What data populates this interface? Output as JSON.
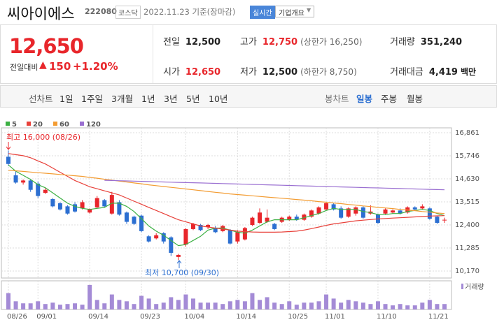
{
  "header": {
    "name": "씨아이에스",
    "code": "222080",
    "market": "코스닥",
    "date": "2022.11.23 기준(장마감)",
    "realtime": "실시간",
    "overview": "기업개요"
  },
  "quote": {
    "price": "12,650",
    "change_label": "전일대비",
    "change": "150",
    "change_pct": "+1.20%",
    "items": [
      {
        "label": "전일",
        "value": "12,500"
      },
      {
        "label": "고가",
        "value": "12,750",
        "note": "(상한가 16,250)"
      },
      {
        "label": "거래량",
        "value": "351,240"
      },
      {
        "label": "시가",
        "value": "12,650"
      },
      {
        "label": "저가",
        "value": "12,500",
        "note": "(하한가 8,750)"
      },
      {
        "label": "거래대금",
        "value": "4,419",
        "unit": "백만"
      }
    ]
  },
  "tabs": {
    "line": "선차트",
    "periods": [
      "1일",
      "1주일",
      "3개월",
      "1년",
      "3년",
      "5년",
      "10년"
    ],
    "candle": "봉차트",
    "candle_periods": [
      "일봉",
      "주봉",
      "월봉"
    ]
  },
  "chart_data": {
    "type": "candlestick",
    "categories": [
      "08/26",
      null,
      null,
      null,
      "09/01",
      null,
      null,
      null,
      null,
      null,
      null,
      "09/14",
      null,
      null,
      null,
      null,
      null,
      null,
      "09/23",
      null,
      null,
      null,
      null,
      null,
      "10/04",
      null,
      null,
      null,
      null,
      null,
      null,
      "10/14",
      null,
      null,
      null,
      null,
      null,
      null,
      "10/25",
      null,
      null,
      null,
      null,
      "11/01",
      null,
      null,
      null,
      null,
      null,
      null,
      "11/10",
      null,
      null,
      null,
      null,
      null,
      null,
      "11/21",
      null,
      null
    ],
    "open": [
      15700,
      14800,
      14450,
      14550,
      14400,
      13950,
      13650,
      13450,
      13300,
      13400,
      13200,
      13000,
      13250,
      13600,
      12950,
      13500,
      13000,
      12800,
      12850,
      11850,
      11750,
      12000,
      11800,
      10850,
      11450,
      12200,
      12400,
      12300,
      12250,
      12100,
      12150,
      11600,
      11700,
      12400,
      12500,
      12550,
      12450,
      12550,
      12650,
      12800,
      12650,
      12800,
      12950,
      13150,
      13400,
      13200,
      12800,
      12950,
      13250,
      12950,
      12900,
      12950,
      13000,
      13100,
      13000,
      13250,
      13200,
      13200,
      12800,
      12650
    ],
    "high": [
      16000,
      15000,
      14600,
      14600,
      14500,
      14200,
      13700,
      13500,
      13350,
      13500,
      13600,
      13200,
      13800,
      13650,
      14000,
      13600,
      13050,
      12850,
      12900,
      11900,
      12000,
      12050,
      11850,
      11000,
      12250,
      12500,
      12450,
      12450,
      12350,
      12400,
      12200,
      12150,
      12300,
      12800,
      13200,
      13150,
      12500,
      12800,
      12850,
      12900,
      12950,
      13150,
      13300,
      13500,
      13450,
      13300,
      13250,
      13300,
      13300,
      13350,
      12950,
      13200,
      13150,
      13200,
      13300,
      13300,
      13400,
      13250,
      12850,
      12750
    ],
    "low": [
      15250,
      14400,
      14350,
      14000,
      13700,
      13900,
      13250,
      13100,
      12900,
      13000,
      13150,
      12950,
      13200,
      13250,
      12900,
      12850,
      12450,
      12400,
      12050,
      11550,
      11700,
      11500,
      10900,
      10700,
      11350,
      12150,
      12100,
      12200,
      12000,
      12050,
      11450,
      11500,
      11650,
      12350,
      12450,
      12500,
      12150,
      12500,
      12600,
      12600,
      12600,
      12750,
      12900,
      13100,
      13100,
      12700,
      12750,
      12850,
      12700,
      12900,
      12450,
      12900,
      12950,
      12900,
      12950,
      13100,
      13150,
      12650,
      12450,
      12500
    ],
    "close": [
      15350,
      14450,
      14550,
      14100,
      13800,
      14100,
      13300,
      13150,
      12950,
      13050,
      13500,
      13150,
      13700,
      13300,
      13850,
      12900,
      12550,
      12450,
      12100,
      11600,
      11900,
      11600,
      11050,
      10950,
      12200,
      12450,
      12150,
      12400,
      12050,
      12350,
      11500,
      12050,
      12250,
      12750,
      13000,
      12750,
      12200,
      12750,
      12800,
      12650,
      12900,
      13100,
      13250,
      13450,
      13150,
      12750,
      13200,
      13250,
      12750,
      13050,
      12500,
      13150,
      13100,
      12950,
      13250,
      13150,
      13300,
      12700,
      12500,
      12650
    ],
    "up_color": "#e8262b",
    "down_color": "#2c6fd1",
    "series": [
      {
        "name": "5",
        "color": "#3cb043",
        "values": [
          15300,
          15000,
          14800,
          14600,
          14350,
          14200,
          13950,
          13700,
          13450,
          13300,
          13200,
          13150,
          13200,
          13250,
          13450,
          13450,
          13300,
          13050,
          12700,
          12350,
          12100,
          11900,
          11650,
          11400,
          11450,
          11650,
          11850,
          12150,
          12250,
          12250,
          12150,
          12050,
          12000,
          12150,
          12350,
          12550,
          12650,
          12650,
          12650,
          12650,
          12750,
          12850,
          12950,
          13100,
          13200,
          13150,
          13150,
          13150,
          13050,
          13000,
          12900,
          12900,
          12950,
          12950,
          13050,
          13100,
          13150,
          13100,
          12950,
          12850
        ]
      },
      {
        "name": "20",
        "color": "#e8413a",
        "values": [
          15850,
          15800,
          15750,
          15650,
          15500,
          15350,
          15150,
          14950,
          14750,
          14550,
          14400,
          14250,
          14150,
          14050,
          13950,
          13850,
          13700,
          13550,
          13400,
          13250,
          13100,
          12950,
          12800,
          12650,
          12550,
          12450,
          12350,
          12300,
          12250,
          12200,
          12150,
          12100,
          12080,
          12060,
          12050,
          12050,
          12050,
          12060,
          12080,
          12100,
          12150,
          12220,
          12300,
          12380,
          12450,
          12500,
          12550,
          12600,
          12630,
          12660,
          12690,
          12710,
          12730,
          12750,
          12770,
          12790,
          12810,
          12830,
          12840,
          12850
        ]
      },
      {
        "name": "60",
        "color": "#f39c32",
        "values": [
          15050,
          15020,
          14990,
          14960,
          14930,
          14900,
          14870,
          14840,
          14810,
          14780,
          14750,
          14700,
          14660,
          14610,
          14570,
          14520,
          14480,
          14430,
          14390,
          14340,
          14300,
          14260,
          14220,
          14180,
          14140,
          14100,
          14060,
          14020,
          13980,
          13940,
          13900,
          13870,
          13840,
          13810,
          13780,
          13750,
          13720,
          13690,
          13660,
          13630,
          13600,
          13570,
          13530,
          13500,
          13460,
          13430,
          13390,
          13360,
          13320,
          13290,
          13250,
          13220,
          13190,
          13150,
          13120,
          13090,
          13050,
          13020,
          12980,
          12950
        ]
      },
      {
        "name": "120",
        "color": "#9a6fd1",
        "values": [
          null,
          null,
          null,
          null,
          null,
          null,
          null,
          null,
          null,
          null,
          null,
          null,
          null,
          14560,
          14550,
          14540,
          14530,
          14520,
          14510,
          14500,
          14490,
          14480,
          14470,
          14460,
          14450,
          14440,
          14430,
          14420,
          14410,
          14400,
          14390,
          14380,
          14370,
          14360,
          14350,
          14340,
          14330,
          14320,
          14310,
          14300,
          14290,
          14280,
          14270,
          14260,
          14250,
          14240,
          14230,
          14220,
          14210,
          14200,
          14190,
          14180,
          14170,
          14160,
          14150,
          14140,
          14130,
          14120,
          14110,
          14100
        ]
      }
    ],
    "ylim": [
      9832,
      17098
    ],
    "yticks": [
      {
        "value": 16861,
        "label": "16,861"
      },
      {
        "value": 15746,
        "label": "15,746"
      },
      {
        "value": 14630,
        "label": "14,630"
      },
      {
        "value": 13515,
        "label": "13,515"
      },
      {
        "value": 12400,
        "label": "12,400"
      },
      {
        "value": 11285,
        "label": "11,285"
      },
      {
        "value": 10170,
        "label": "10,170"
      }
    ],
    "grid": true,
    "annotations": [
      {
        "text": "최고 16,000 (08/26)"
      },
      {
        "text": "최저 10,700 (09/30)"
      }
    ],
    "volume": {
      "name": "거래량",
      "color": "#a48bd6",
      "ylim": [
        0,
        1850000
      ],
      "values": [
        1056000,
        528000,
        396000,
        396000,
        528000,
        352000,
        440000,
        308000,
        352000,
        396000,
        308000,
        1584000,
        616000,
        396000,
        968000,
        616000,
        528000,
        352000,
        880000,
        704000,
        352000,
        440000,
        792000,
        616000,
        968000,
        704000,
        440000,
        440000,
        440000,
        352000,
        528000,
        616000,
        528000,
        1056000,
        616000,
        792000,
        440000,
        352000,
        528000,
        308000,
        440000,
        440000,
        528000,
        968000,
        704000,
        440000,
        616000,
        528000,
        440000,
        352000,
        528000,
        352000,
        264000,
        352000,
        264000,
        264000,
        440000,
        616000,
        352000,
        351240
      ]
    }
  }
}
